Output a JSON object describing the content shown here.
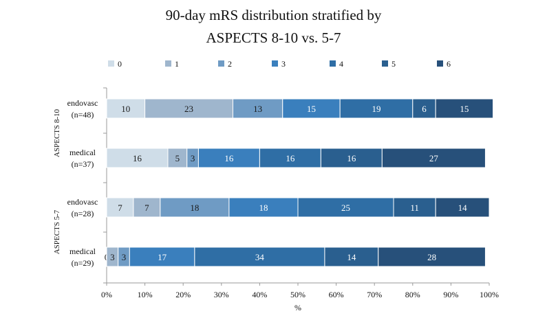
{
  "chart_data": {
    "type": "bar",
    "orientation": "horizontal",
    "stacked": "percent",
    "title_lines": [
      "90-day mRS distribution stratified by",
      "ASPECTS 8-10 vs. 5-7"
    ],
    "xlabel": "%",
    "xlim": [
      0,
      100
    ],
    "x_ticks": [
      "0%",
      "10%",
      "20%",
      "30%",
      "40%",
      "50%",
      "60%",
      "70%",
      "80%",
      "90%",
      "100%"
    ],
    "legend_position": "top",
    "legend": [
      "0",
      "1",
      "2",
      "3",
      "4",
      "5",
      "6"
    ],
    "series_colors": [
      "#cfdde8",
      "#9fb6cd",
      "#6f9bc4",
      "#3a7fbd",
      "#2f6ea5",
      "#2a5f8f",
      "#27507a"
    ],
    "groups": [
      {
        "label": "ASPECTS 8-10",
        "rows": [
          0,
          1
        ]
      },
      {
        "label": "ASPECTS 5-7",
        "rows": [
          2,
          3
        ]
      }
    ],
    "categories": [
      {
        "name": "endovasc",
        "n": "(n=48)"
      },
      {
        "name": "medical",
        "n": "(n=37)"
      },
      {
        "name": "endovasc",
        "n": "(n=28)"
      },
      {
        "name": "medical",
        "n": "(n=29)"
      }
    ],
    "values": [
      [
        10,
        23,
        13,
        15,
        19,
        6,
        15
      ],
      [
        16,
        5,
        3,
        16,
        16,
        16,
        27
      ],
      [
        7,
        7,
        18,
        18,
        25,
        11,
        14
      ],
      [
        0,
        3,
        3,
        17,
        34,
        14,
        28
      ]
    ]
  }
}
